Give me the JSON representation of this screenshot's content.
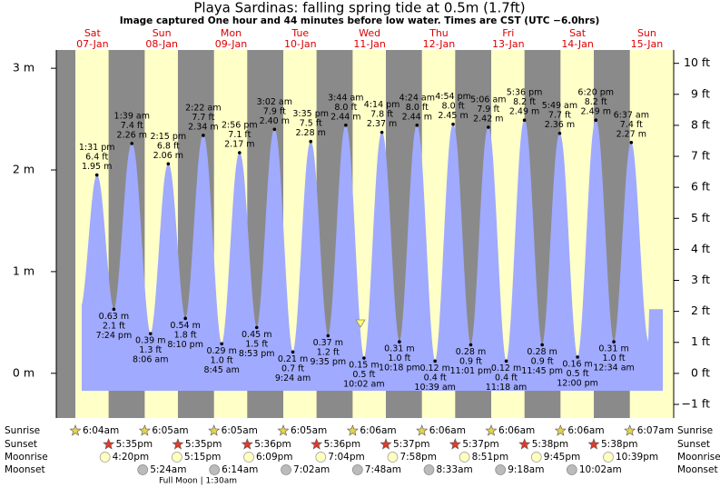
{
  "chart_data": {
    "type": "area",
    "title": "Playa Sardinas: falling  spring tide at 0.5m (1.7ft)",
    "subtitle": "Image captured One hour and 44 minutes before low water. Times are CST (UTC −6.0hrs)",
    "ylim": [
      -0.44,
      3.18
    ],
    "yticks": [
      {
        "value": 0,
        "label": "0 m"
      },
      {
        "value": 1,
        "label": "1 m"
      },
      {
        "value": 2,
        "label": "2 m"
      },
      {
        "value": 3,
        "label": "3 m"
      }
    ],
    "y2lim": [
      -1.44,
      10.43
    ],
    "y2ticks": [
      {
        "value": -1,
        "label": "−1 ft"
      },
      {
        "value": 0,
        "label": "0 ft"
      },
      {
        "value": 1,
        "label": "1 ft"
      },
      {
        "value": 2,
        "label": "2 ft"
      },
      {
        "value": 3,
        "label": "3 ft"
      },
      {
        "value": 4,
        "label": "4 ft"
      },
      {
        "value": 5,
        "label": "5 ft"
      },
      {
        "value": 6,
        "label": "6 ft"
      },
      {
        "value": 7,
        "label": "7 ft"
      },
      {
        "value": 8,
        "label": "8 ft"
      },
      {
        "value": 9,
        "label": "9 ft"
      },
      {
        "value": 10,
        "label": "10 ft"
      }
    ],
    "row_labels": [
      "Sunrise",
      "Sunset",
      "Moonrise",
      "Moonset"
    ],
    "moon_phase": "Full Moon | 1:30am",
    "days": [
      {
        "weekday": "Sat",
        "date": "07-Jan",
        "sunrise": "6:04am",
        "sunset": "5:35pm",
        "moonrise": "4:20pm",
        "moonset": null,
        "tides": [
          {
            "time": "1:31 pm",
            "ft": {
              "value": 6.4,
              "label": "6.4 ft"
            },
            "m": {
              "value": 1.95,
              "label": "1.95 m"
            }
          },
          {
            "time": "7:24 pm",
            "ft": {
              "value": 2.1,
              "label": "2.1 ft"
            },
            "m": {
              "value": 0.63,
              "label": "0.63 m"
            }
          }
        ]
      },
      {
        "weekday": "Sun",
        "date": "08-Jan",
        "sunrise": "6:05am",
        "sunset": "5:35pm",
        "moonrise": "5:15pm",
        "moonset": "5:24am",
        "tides": [
          {
            "time": "1:39 am",
            "ft": {
              "value": 7.4,
              "label": "7.4 ft"
            },
            "m": {
              "value": 2.26,
              "label": "2.26 m"
            }
          },
          {
            "time": "8:06 am",
            "ft": {
              "value": 1.3,
              "label": "1.3 ft"
            },
            "m": {
              "value": 0.39,
              "label": "0.39 m"
            }
          },
          {
            "time": "2:15 pm",
            "ft": {
              "value": 6.8,
              "label": "6.8 ft"
            },
            "m": {
              "value": 2.06,
              "label": "2.06 m"
            }
          },
          {
            "time": "8:10 pm",
            "ft": {
              "value": 1.8,
              "label": "1.8 ft"
            },
            "m": {
              "value": 0.54,
              "label": "0.54 m"
            }
          }
        ]
      },
      {
        "weekday": "Mon",
        "date": "09-Jan",
        "sunrise": "6:05am",
        "sunset": "5:36pm",
        "moonrise": "6:09pm",
        "moonset": "6:14am",
        "tides": [
          {
            "time": "2:22 am",
            "ft": {
              "value": 7.7,
              "label": "7.7 ft"
            },
            "m": {
              "value": 2.34,
              "label": "2.34 m"
            }
          },
          {
            "time": "8:45 am",
            "ft": {
              "value": 1.0,
              "label": "1.0 ft"
            },
            "m": {
              "value": 0.29,
              "label": "0.29 m"
            }
          },
          {
            "time": "2:56 pm",
            "ft": {
              "value": 7.1,
              "label": "7.1 ft"
            },
            "m": {
              "value": 2.17,
              "label": "2.17 m"
            }
          },
          {
            "time": "8:53 pm",
            "ft": {
              "value": 1.5,
              "label": "1.5 ft"
            },
            "m": {
              "value": 0.45,
              "label": "0.45 m"
            }
          }
        ]
      },
      {
        "weekday": "Tue",
        "date": "10-Jan",
        "sunrise": "6:05am",
        "sunset": "5:36pm",
        "moonrise": "7:04pm",
        "moonset": "7:02am",
        "tides": [
          {
            "time": "3:02 am",
            "ft": {
              "value": 7.9,
              "label": "7.9 ft"
            },
            "m": {
              "value": 2.4,
              "label": "2.40 m"
            }
          },
          {
            "time": "9:24 am",
            "ft": {
              "value": 0.7,
              "label": "0.7 ft"
            },
            "m": {
              "value": 0.21,
              "label": "0.21 m"
            }
          },
          {
            "time": "3:35 pm",
            "ft": {
              "value": 7.5,
              "label": "7.5 ft"
            },
            "m": {
              "value": 2.28,
              "label": "2.28 m"
            }
          },
          {
            "time": "9:35 pm",
            "ft": {
              "value": 1.2,
              "label": "1.2 ft"
            },
            "m": {
              "value": 0.37,
              "label": "0.37 m"
            }
          }
        ]
      },
      {
        "weekday": "Wed",
        "date": "11-Jan",
        "sunrise": "6:06am",
        "sunset": "5:37pm",
        "moonrise": "7:58pm",
        "moonset": "7:48am",
        "tides": [
          {
            "time": "3:44 am",
            "ft": {
              "value": 8.0,
              "label": "8.0 ft"
            },
            "m": {
              "value": 2.44,
              "label": "2.44 m"
            }
          },
          {
            "time": "10:02 am",
            "ft": {
              "value": 0.5,
              "label": "0.5 ft"
            },
            "m": {
              "value": 0.15,
              "label": "0.15 m"
            }
          },
          {
            "time": "4:14 pm",
            "ft": {
              "value": 7.8,
              "label": "7.8 ft"
            },
            "m": {
              "value": 2.37,
              "label": "2.37 m"
            }
          },
          {
            "time": "10:18 pm",
            "ft": {
              "value": 1.0,
              "label": "1.0 ft"
            },
            "m": {
              "value": 0.31,
              "label": "0.31 m"
            }
          }
        ]
      },
      {
        "weekday": "Thu",
        "date": "12-Jan",
        "sunrise": "6:06am",
        "sunset": "5:37pm",
        "moonrise": "8:51pm",
        "moonset": "8:33am",
        "tides": [
          {
            "time": "4:24 am",
            "ft": {
              "value": 8.0,
              "label": "8.0 ft"
            },
            "m": {
              "value": 2.44,
              "label": "2.44 m"
            }
          },
          {
            "time": "10:39 am",
            "ft": {
              "value": 0.4,
              "label": "0.4 ft"
            },
            "m": {
              "value": 0.12,
              "label": "0.12 m"
            }
          },
          {
            "time": "4:54 pm",
            "ft": {
              "value": 8.0,
              "label": "8.0 ft"
            },
            "m": {
              "value": 2.45,
              "label": "2.45 m"
            }
          },
          {
            "time": "11:01 pm",
            "ft": {
              "value": 0.9,
              "label": "0.9 ft"
            },
            "m": {
              "value": 0.28,
              "label": "0.28 m"
            }
          }
        ]
      },
      {
        "weekday": "Fri",
        "date": "13-Jan",
        "sunrise": "6:06am",
        "sunset": "5:38pm",
        "moonrise": "9:45pm",
        "moonset": "9:18am",
        "tides": [
          {
            "time": "5:06 am",
            "ft": {
              "value": 7.9,
              "label": "7.9 ft"
            },
            "m": {
              "value": 2.42,
              "label": "2.42 m"
            }
          },
          {
            "time": "11:18 am",
            "ft": {
              "value": 0.4,
              "label": "0.4 ft"
            },
            "m": {
              "value": 0.12,
              "label": "0.12 m"
            }
          },
          {
            "time": "5:36 pm",
            "ft": {
              "value": 8.2,
              "label": "8.2 ft"
            },
            "m": {
              "value": 2.49,
              "label": "2.49 m"
            }
          },
          {
            "time": "11:45 pm",
            "ft": {
              "value": 0.9,
              "label": "0.9 ft"
            },
            "m": {
              "value": 0.28,
              "label": "0.28 m"
            }
          }
        ]
      },
      {
        "weekday": "Sat",
        "date": "14-Jan",
        "sunrise": "6:06am",
        "sunset": "5:38pm",
        "moonrise": "10:39pm",
        "moonset": "10:02am",
        "tides": [
          {
            "time": "5:49 am",
            "ft": {
              "value": 7.7,
              "label": "7.7 ft"
            },
            "m": {
              "value": 2.36,
              "label": "2.36 m"
            }
          },
          {
            "time": "12:00 pm",
            "ft": {
              "value": 0.5,
              "label": "0.5 ft"
            },
            "m": {
              "value": 0.16,
              "label": "0.16 m"
            }
          },
          {
            "time": "6:20 pm",
            "ft": {
              "value": 8.2,
              "label": "8.2 ft"
            },
            "m": {
              "value": 2.49,
              "label": "2.49 m"
            }
          }
        ]
      },
      {
        "weekday": "Sun",
        "date": "15-Jan",
        "sunrise": "6:07am",
        "sunset": null,
        "moonrise": null,
        "moonset": null,
        "tides": [
          {
            "time": "12:34 am",
            "ft": {
              "value": 1.0,
              "label": "1.0 ft"
            },
            "m": {
              "value": 0.31,
              "label": "0.31 m"
            }
          },
          {
            "time": "6:37 am",
            "ft": {
              "value": 7.4,
              "label": "7.4 ft"
            },
            "m": {
              "value": 2.27,
              "label": "2.27 m"
            }
          }
        ]
      }
    ]
  }
}
